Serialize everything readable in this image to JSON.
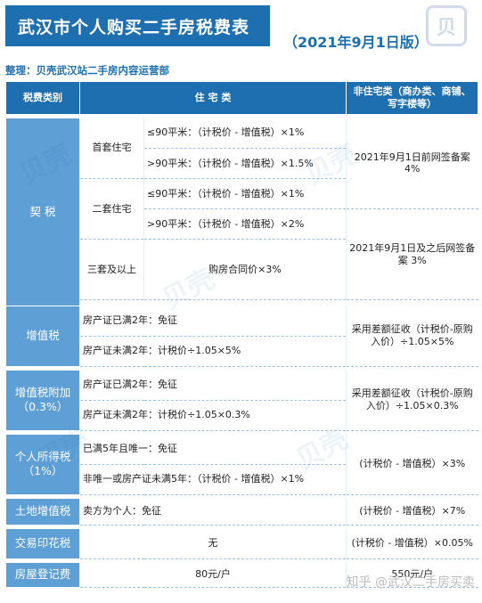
{
  "header": {
    "title": "武汉市个人购买二手房税费表",
    "date": "（2021年9月1日版）",
    "organizer": "整理：贝壳武汉站二手房内容运营部"
  },
  "table": {
    "headers": [
      "税费类别",
      "住 宅 类",
      "非住宅类（商办类、商铺、写字楼等）"
    ],
    "deed_tax": {
      "label": "契 税",
      "first_home": "首套住宅",
      "first_small": "≤90平米：（计税价 - 增值税）×1%",
      "first_large": ">90平米：（计税价 - 增值税）×1.5%",
      "second_home": "二套住宅",
      "second_small": "≤90平米：（计税价 - 增值税）×1%",
      "second_large": ">90平米：（计税价 - 增值税）×2%",
      "third_home": "三套及以上",
      "third_rate": "购房合同价×3%",
      "nonres_before": "2021年9月1日前网签备案 4%",
      "nonres_after": "2021年9月1日及之后网签备案 3%"
    },
    "vat": {
      "label": "增值税",
      "exempt": "房产证已满2年：免征",
      "taxed": "房产证未满2年：计税价÷1.05×5%",
      "nonres": "采用差额征收（计税价-原购入价）÷1.05×5%"
    },
    "vat_surcharge": {
      "label": "增值税附加（0.3%）",
      "exempt": "房产证已满2年：免征",
      "taxed": "房产证未满2年：计税价÷1.05×0.3%",
      "nonres": "采用差额征收（计税价-原购入价）÷1.05×0.3%"
    },
    "income_tax": {
      "label": "个人所得税（1%）",
      "exempt": "已满5年且唯一：免征",
      "taxed": "非唯一或房产证未满5年：（计税价 - 增值税）×1%",
      "nonres": "(计税价 - 增值税）×3%"
    },
    "land_vat": {
      "label": "土地增值税",
      "residential": "卖方为个人：免征",
      "nonres": "(计税价 - 增值税）×7%"
    },
    "stamp_tax": {
      "label": "交易印花税",
      "residential": "无",
      "nonres": "(计税价 - 增值税）×0.05%"
    },
    "registration_fee": {
      "label": "房屋登记费",
      "residential": "80元/户",
      "nonres": "550元/户"
    }
  },
  "footer": {
    "watermark": "知乎 @武汉二手房买卖"
  },
  "watermarks": [
    "贝壳"
  ]
}
